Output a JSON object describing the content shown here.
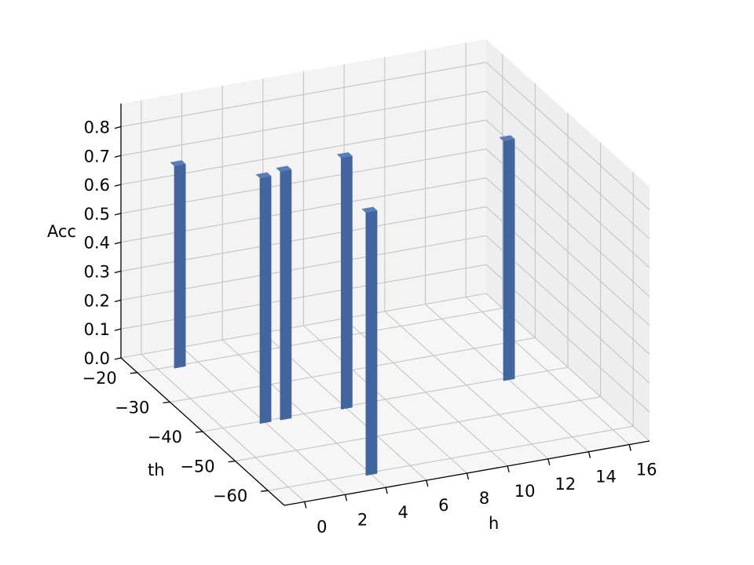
{
  "chart_data": {
    "type": "bar3d",
    "xlabel": "h",
    "ylabel": "th",
    "zlabel": "Acc",
    "xlim": [
      -1,
      17
    ],
    "ylim": [
      -65,
      -15
    ],
    "zlim": [
      0,
      0.88
    ],
    "x_ticks": [
      "0",
      "2",
      "4",
      "6",
      "8",
      "10",
      "12",
      "14",
      "16"
    ],
    "y_ticks": [
      "−20",
      "−30",
      "−40",
      "−50",
      "−60"
    ],
    "z_ticks": [
      "0.0",
      "0.1",
      "0.2",
      "0.3",
      "0.4",
      "0.5",
      "0.6",
      "0.7",
      "0.8"
    ],
    "grid": true,
    "bars": [
      {
        "h": 1,
        "th": -20,
        "acc": 0.7
      },
      {
        "h": 2,
        "th": -40,
        "acc": 0.85
      },
      {
        "h": 3,
        "th": -40,
        "acc": 0.86
      },
      {
        "h": 4,
        "th": -60,
        "acc": 0.91
      },
      {
        "h": 6,
        "th": -40,
        "acc": 0.87
      },
      {
        "h": 14,
        "th": -40,
        "acc": 0.83
      }
    ],
    "colors": {
      "bar_front": "#43659e",
      "bar_side": "#375589",
      "bar_top": "#5a7cb8",
      "pane": "#f3f3f3",
      "grid": "#c4c4c4"
    }
  }
}
